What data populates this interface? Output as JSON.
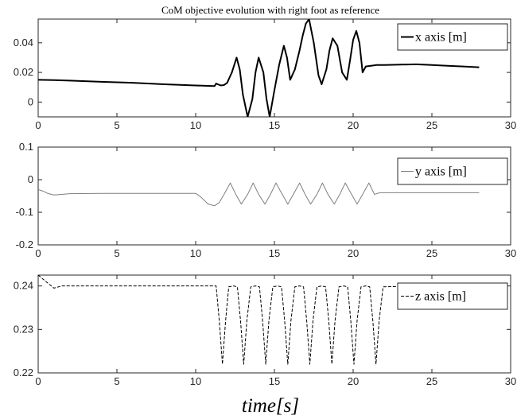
{
  "figure": {
    "title": "CoM objective evolution with right foot as reference",
    "xlabel": "time[s]"
  },
  "chart_data": [
    {
      "type": "line",
      "title": "CoM objective evolution with right foot as reference",
      "xlim": [
        0,
        30
      ],
      "ylim": [
        -0.01,
        0.056
      ],
      "xticks": [
        "0",
        "5",
        "10",
        "15",
        "20",
        "25",
        "30"
      ],
      "yticks": [
        {
          "value": 0,
          "label": "0"
        },
        {
          "value": 0.02,
          "label": "0.02"
        },
        {
          "value": 0.04,
          "label": "0.04"
        }
      ],
      "legend": {
        "position": "top-right"
      },
      "series": [
        {
          "name": "x axis [m]",
          "color": "#000000",
          "style": "solid",
          "x": [
            0,
            1,
            2,
            4,
            6,
            8,
            10,
            11.2,
            11.3,
            11.4,
            11.6,
            11.8,
            12,
            12.3,
            12.6,
            12.8,
            13,
            13.3,
            13.6,
            13.8,
            14,
            14.3,
            14.5,
            14.7,
            15,
            15.3,
            15.6,
            15.8,
            16,
            16.3,
            16.6,
            16.8,
            17,
            17.2,
            17.5,
            17.8,
            18,
            18.3,
            18.5,
            18.7,
            19,
            19.3,
            19.6,
            19.8,
            20,
            20.2,
            20.4,
            20.6,
            20.8,
            21.5,
            22,
            24,
            25,
            26,
            27,
            28
          ],
          "y": [
            0.015,
            0.0148,
            0.0145,
            0.0137,
            0.013,
            0.012,
            0.0112,
            0.0108,
            0.0125,
            0.012,
            0.0112,
            0.0115,
            0.013,
            0.02,
            0.03,
            0.022,
            0.005,
            -0.01,
            0.002,
            0.02,
            0.03,
            0.02,
            0.002,
            -0.01,
            0.008,
            0.025,
            0.038,
            0.03,
            0.015,
            0.022,
            0.035,
            0.045,
            0.053,
            0.056,
            0.04,
            0.018,
            0.012,
            0.022,
            0.035,
            0.043,
            0.038,
            0.02,
            0.015,
            0.028,
            0.042,
            0.048,
            0.04,
            0.02,
            0.024,
            0.025,
            0.025,
            0.0255,
            0.025,
            0.0245,
            0.024,
            0.0235
          ]
        }
      ]
    },
    {
      "type": "line",
      "xlim": [
        0,
        30
      ],
      "ylim": [
        -0.2,
        0.1
      ],
      "xticks": [
        "0",
        "5",
        "10",
        "15",
        "20",
        "25",
        "30"
      ],
      "yticks": [
        {
          "value": -0.2,
          "label": "-0.2"
        },
        {
          "value": -0.1,
          "label": "-0.1"
        },
        {
          "value": 0,
          "label": "0"
        },
        {
          "value": 0.1,
          "label": "0.1"
        }
      ],
      "legend": {
        "position": "top-right"
      },
      "series": [
        {
          "name": "y axis [m]",
          "color": "#7f7f7f",
          "style": "solid",
          "x": [
            0,
            0.3,
            0.6,
            1,
            1.5,
            2,
            4,
            6,
            8,
            10,
            10.3,
            10.8,
            11.2,
            11.5,
            11.8,
            12.2,
            12.55,
            12.9,
            13.3,
            13.65,
            14,
            14.4,
            14.75,
            15.1,
            15.5,
            15.85,
            16.2,
            16.6,
            16.95,
            17.3,
            17.7,
            18.05,
            18.4,
            18.8,
            19.15,
            19.5,
            19.9,
            20.25,
            20.6,
            21,
            21.35,
            21.7,
            22,
            25,
            28
          ],
          "y": [
            -0.03,
            -0.035,
            -0.042,
            -0.047,
            -0.045,
            -0.043,
            -0.042,
            -0.042,
            -0.042,
            -0.042,
            -0.052,
            -0.075,
            -0.08,
            -0.07,
            -0.045,
            -0.01,
            -0.045,
            -0.075,
            -0.045,
            -0.01,
            -0.045,
            -0.075,
            -0.045,
            -0.01,
            -0.045,
            -0.075,
            -0.045,
            -0.01,
            -0.045,
            -0.075,
            -0.045,
            -0.01,
            -0.045,
            -0.075,
            -0.045,
            -0.01,
            -0.045,
            -0.075,
            -0.045,
            -0.01,
            -0.045,
            -0.04,
            -0.04,
            -0.04,
            -0.04
          ]
        }
      ]
    },
    {
      "type": "line",
      "xlim": [
        0,
        30
      ],
      "ylim": [
        0.22,
        0.2425
      ],
      "xticks": [
        "0",
        "5",
        "10",
        "15",
        "20",
        "25",
        "30"
      ],
      "yticks": [
        {
          "value": 0.22,
          "label": "0.22"
        },
        {
          "value": 0.23,
          "label": "0.23"
        },
        {
          "value": 0.24,
          "label": "0.24"
        }
      ],
      "legend": {
        "position": "top-right"
      },
      "series": [
        {
          "name": "z axis [m]",
          "color": "#000000",
          "style": "dashed",
          "x": [
            0,
            0.5,
            1,
            1.5,
            2,
            4,
            6,
            8,
            10,
            11,
            11.3,
            11.5,
            11.7,
            11.9,
            12.1,
            12.4,
            12.65,
            12.85,
            13.05,
            13.25,
            13.5,
            13.8,
            14.05,
            14.25,
            14.45,
            14.65,
            14.9,
            15.2,
            15.45,
            15.65,
            15.85,
            16.05,
            16.3,
            16.6,
            16.85,
            17.05,
            17.25,
            17.45,
            17.7,
            18,
            18.25,
            18.45,
            18.65,
            18.85,
            19.1,
            19.4,
            19.65,
            19.85,
            20.05,
            20.25,
            20.5,
            20.8,
            21.05,
            21.25,
            21.45,
            21.65,
            21.9,
            24,
            26,
            28
          ],
          "y": [
            0.2425,
            0.241,
            0.2395,
            0.24,
            0.24,
            0.24,
            0.24,
            0.24,
            0.24,
            0.24,
            0.24,
            0.232,
            0.222,
            0.232,
            0.2398,
            0.24,
            0.2398,
            0.232,
            0.222,
            0.232,
            0.2398,
            0.24,
            0.2398,
            0.232,
            0.222,
            0.232,
            0.2398,
            0.24,
            0.2398,
            0.232,
            0.222,
            0.232,
            0.2398,
            0.24,
            0.2398,
            0.232,
            0.222,
            0.232,
            0.2398,
            0.24,
            0.2398,
            0.232,
            0.222,
            0.232,
            0.2398,
            0.24,
            0.2398,
            0.232,
            0.222,
            0.232,
            0.2398,
            0.24,
            0.2398,
            0.232,
            0.222,
            0.232,
            0.2398,
            0.24,
            0.24,
            0.24
          ]
        }
      ]
    }
  ]
}
